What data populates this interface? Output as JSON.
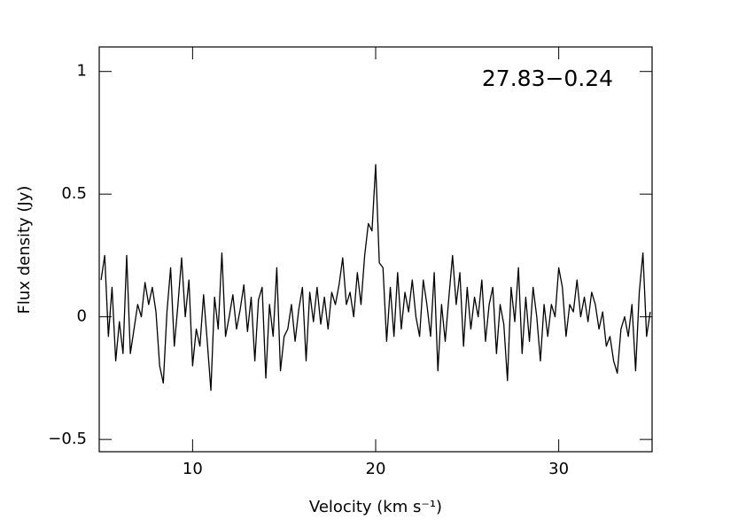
{
  "chart_data": {
    "type": "line",
    "annotation": "27.83−0.24",
    "xlabel": "Velocity (km s⁻¹)",
    "ylabel": "Flux density (Jy)",
    "xlim": [
      4.9,
      35.1
    ],
    "ylim": [
      -0.55,
      1.1
    ],
    "xticks": [
      10,
      20,
      30
    ],
    "yticks": [
      {
        "value": -0.5,
        "label": "−0.5"
      },
      0,
      0.5,
      1
    ],
    "color": "#000000",
    "x": [
      5.0,
      5.2,
      5.4,
      5.6,
      5.8,
      6.0,
      6.2,
      6.4,
      6.6,
      6.8,
      7.0,
      7.2,
      7.4,
      7.6,
      7.8,
      8.0,
      8.2,
      8.4,
      8.6,
      8.8,
      9.0,
      9.2,
      9.4,
      9.6,
      9.8,
      10.0,
      10.2,
      10.4,
      10.6,
      10.8,
      11.0,
      11.2,
      11.4,
      11.6,
      11.8,
      12.0,
      12.2,
      12.4,
      12.6,
      12.8,
      13.0,
      13.2,
      13.4,
      13.6,
      13.8,
      14.0,
      14.2,
      14.4,
      14.6,
      14.8,
      15.0,
      15.2,
      15.4,
      15.6,
      15.8,
      16.0,
      16.2,
      16.4,
      16.6,
      16.8,
      17.0,
      17.2,
      17.4,
      17.6,
      17.8,
      18.0,
      18.2,
      18.4,
      18.6,
      18.8,
      19.0,
      19.2,
      19.4,
      19.6,
      19.8,
      20.0,
      20.2,
      20.4,
      20.6,
      20.8,
      21.0,
      21.2,
      21.4,
      21.6,
      21.8,
      22.0,
      22.2,
      22.4,
      22.6,
      22.8,
      23.0,
      23.2,
      23.4,
      23.6,
      23.8,
      24.0,
      24.2,
      24.4,
      24.6,
      24.8,
      25.0,
      25.2,
      25.4,
      25.6,
      25.8,
      26.0,
      26.2,
      26.4,
      26.6,
      26.8,
      27.0,
      27.2,
      27.4,
      27.6,
      27.8,
      28.0,
      28.2,
      28.4,
      28.6,
      28.8,
      29.0,
      29.2,
      29.4,
      29.6,
      29.8,
      30.0,
      30.2,
      30.4,
      30.6,
      30.8,
      31.0,
      31.2,
      31.4,
      31.6,
      31.8,
      32.0,
      32.2,
      32.4,
      32.6,
      32.8,
      33.0,
      33.2,
      33.4,
      33.6,
      33.8,
      34.0,
      34.2,
      34.4,
      34.6,
      34.8,
      35.0
    ],
    "values": [
      0.15,
      0.25,
      -0.08,
      0.12,
      -0.18,
      -0.02,
      -0.15,
      0.25,
      -0.15,
      -0.05,
      0.05,
      0.0,
      0.14,
      0.05,
      0.12,
      0.02,
      -0.2,
      -0.27,
      0.02,
      0.2,
      -0.12,
      0.05,
      0.24,
      0.0,
      0.15,
      -0.2,
      -0.05,
      -0.12,
      0.09,
      -0.1,
      -0.3,
      0.08,
      -0.05,
      0.26,
      -0.08,
      0.0,
      0.09,
      -0.05,
      0.03,
      0.13,
      -0.06,
      0.08,
      -0.18,
      0.07,
      0.12,
      -0.25,
      0.05,
      -0.08,
      0.2,
      -0.22,
      -0.08,
      -0.05,
      0.05,
      -0.1,
      0.03,
      0.12,
      -0.18,
      0.1,
      -0.02,
      0.12,
      -0.03,
      0.08,
      -0.05,
      0.1,
      0.05,
      0.13,
      0.24,
      0.05,
      0.1,
      0.0,
      0.18,
      0.05,
      0.25,
      0.38,
      0.35,
      0.62,
      0.22,
      0.2,
      -0.1,
      0.12,
      -0.08,
      0.18,
      -0.05,
      0.1,
      0.02,
      0.15,
      0.0,
      -0.08,
      0.15,
      0.05,
      -0.08,
      0.18,
      -0.22,
      0.05,
      -0.1,
      0.08,
      0.25,
      0.05,
      0.18,
      -0.12,
      0.12,
      -0.05,
      0.08,
      0.0,
      0.15,
      -0.1,
      0.05,
      0.12,
      -0.15,
      0.05,
      -0.03,
      -0.26,
      0.12,
      -0.02,
      0.2,
      -0.15,
      0.08,
      -0.1,
      0.12,
      0.0,
      -0.18,
      0.05,
      -0.08,
      0.05,
      0.0,
      0.2,
      0.12,
      -0.08,
      0.05,
      0.02,
      0.15,
      0.0,
      0.08,
      -0.02,
      0.1,
      0.05,
      -0.05,
      0.02,
      -0.12,
      -0.08,
      -0.18,
      -0.23,
      -0.05,
      0.0,
      -0.08,
      0.05,
      -0.22,
      0.1,
      0.26,
      -0.08,
      0.02
    ]
  }
}
